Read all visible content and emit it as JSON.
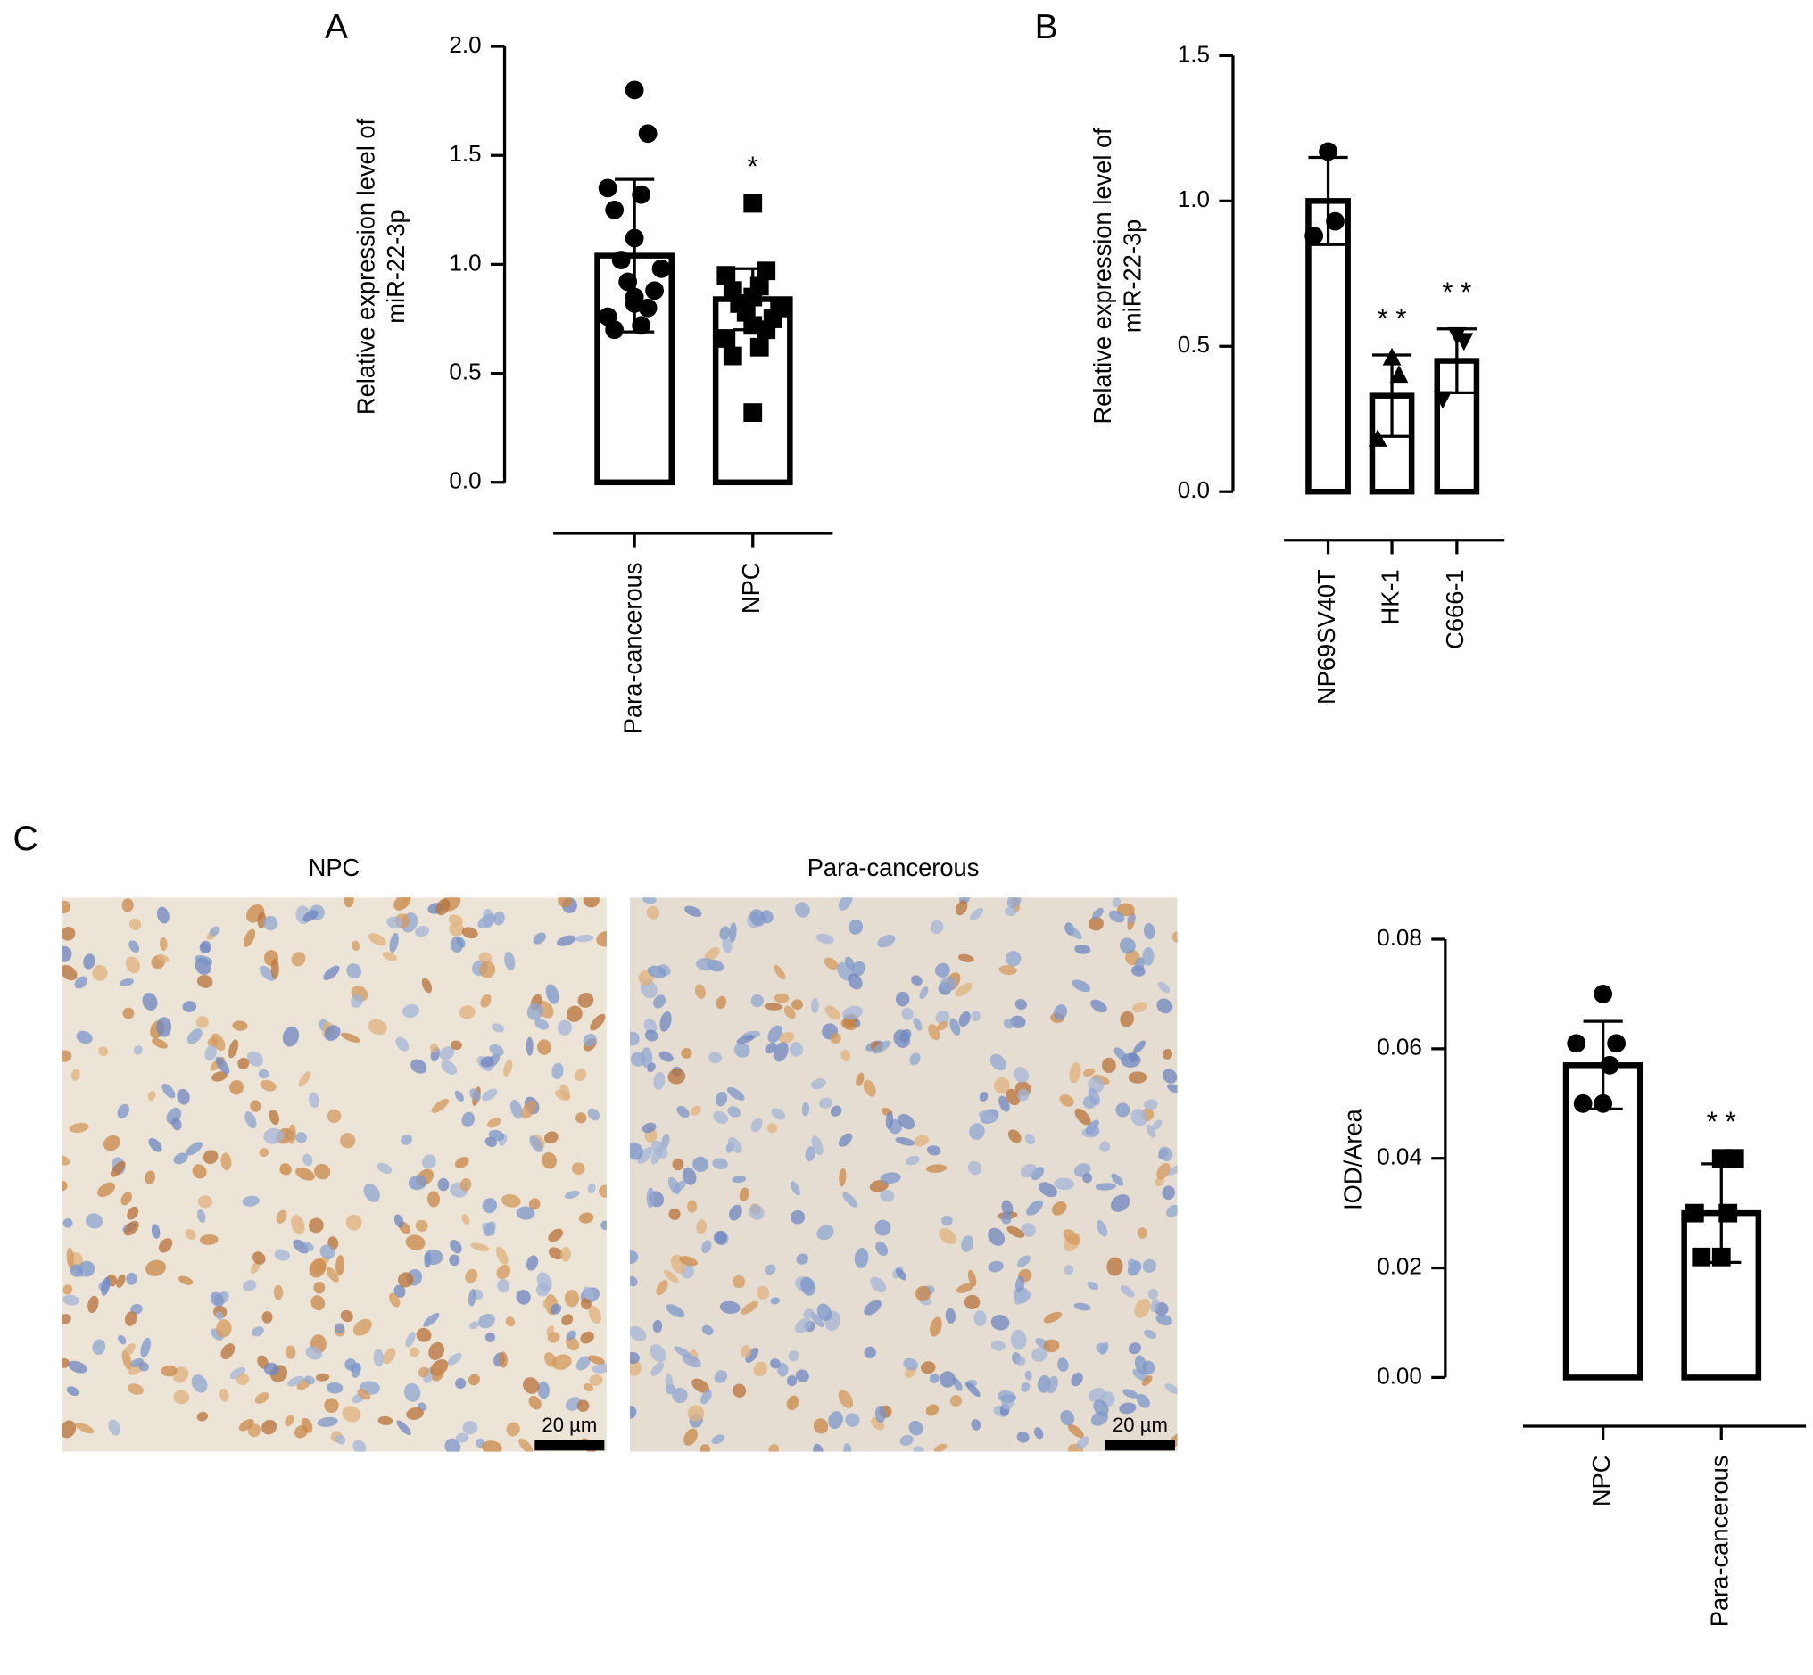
{
  "chart_data": [
    {
      "type": "bar",
      "panel": "A",
      "ylabel": [
        "Relative expression level of",
        "miR-22-3p"
      ],
      "categories": [
        "Para-cancerous",
        "NPC"
      ],
      "values": [
        1.04,
        0.84
      ],
      "errors": [
        0.35,
        0.14
      ],
      "markers": [
        "circle",
        "square"
      ],
      "points": [
        [
          1.8,
          1.6,
          1.35,
          1.32,
          1.25,
          1.12,
          1.02,
          0.98,
          0.92,
          0.88,
          0.85,
          0.8,
          0.76,
          0.72,
          0.7,
          0.82
        ],
        [
          1.28,
          0.97,
          0.95,
          0.9,
          0.88,
          0.85,
          0.82,
          0.8,
          0.78,
          0.75,
          0.72,
          0.7,
          0.66,
          0.62,
          0.58,
          0.32
        ]
      ],
      "annotations": [
        null,
        "*"
      ],
      "color": "#000000",
      "ylim": [
        0,
        2.0
      ],
      "yticks": [
        {
          "value": 0,
          "label": "0.0"
        },
        {
          "value": 0.5,
          "label": "0.5"
        },
        {
          "value": 1.0,
          "label": "1.0"
        },
        {
          "value": 1.5,
          "label": "1.5"
        },
        {
          "value": 2.0,
          "label": "2.0"
        }
      ]
    },
    {
      "type": "bar",
      "panel": "B",
      "ylabel": [
        "Relative expression level of",
        "miR-22-3p"
      ],
      "categories": [
        "NP69SV40T",
        "HK-1",
        "C666-1"
      ],
      "values": [
        1.0,
        0.33,
        0.45
      ],
      "errors": [
        0.15,
        0.14,
        0.11
      ],
      "markers": [
        "circle",
        "triangle",
        "triangle-down"
      ],
      "points": [
        [
          1.17,
          0.93,
          0.88
        ],
        [
          0.46,
          0.4,
          0.18
        ],
        [
          0.54,
          0.52,
          0.32
        ]
      ],
      "annotations": [
        null,
        "* *",
        "* *"
      ],
      "color": "#000000",
      "ylim": [
        0,
        1.5
      ],
      "yticks": [
        {
          "value": 0,
          "label": "0.0"
        },
        {
          "value": 0.5,
          "label": "0.5"
        },
        {
          "value": 1.0,
          "label": "1.0"
        },
        {
          "value": 1.5,
          "label": "1.5"
        }
      ]
    },
    {
      "type": "bar",
      "panel": "C",
      "ylabel": "IOD/Area",
      "categories": [
        "NPC",
        "Para-cancerous"
      ],
      "values": [
        0.057,
        0.03
      ],
      "errors": [
        0.008,
        0.009
      ],
      "markers": [
        "circle",
        "square"
      ],
      "points": [
        [
          0.07,
          0.061,
          0.061,
          0.057,
          0.05,
          0.05
        ],
        [
          0.04,
          0.04,
          0.03,
          0.03,
          0.022,
          0.022
        ]
      ],
      "annotations": [
        null,
        "* *"
      ],
      "color": "#000000",
      "ylim": [
        0,
        0.08
      ],
      "yticks": [
        {
          "value": 0,
          "label": "0.00"
        },
        0.02,
        0.04,
        0.06,
        0.08
      ]
    }
  ],
  "images": [
    {
      "title": "NPC",
      "scale_label": "20 µm"
    },
    {
      "title": "Para-cancerous",
      "scale_label": "20 µm"
    }
  ]
}
